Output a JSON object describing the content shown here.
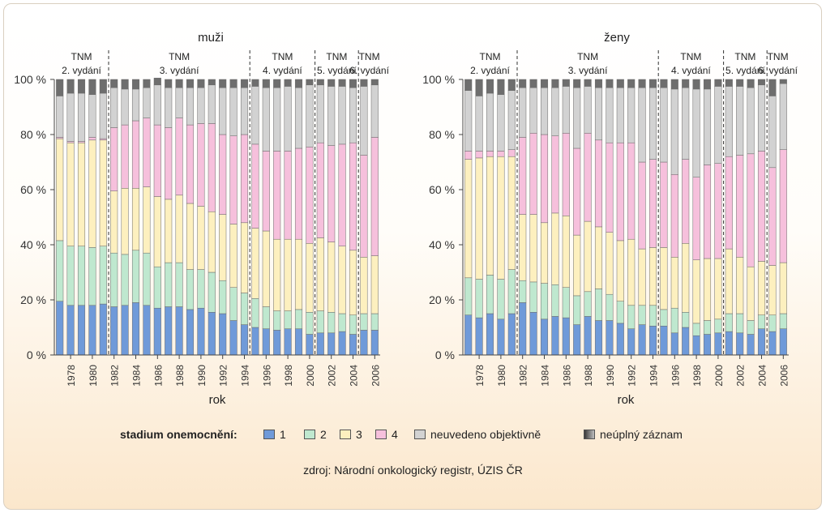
{
  "legend": {
    "title": "stadium onemocnění:",
    "items": [
      {
        "label": "1",
        "color": "#6f9ad9"
      },
      {
        "label": "2",
        "color": "#bfe8cf"
      },
      {
        "label": "3",
        "color": "#fdf0bf"
      },
      {
        "label": "4",
        "color": "#f6c0dc"
      },
      {
        "label": "neuvedeno objektivně",
        "color": "#d2d2d2"
      },
      {
        "label": "neúplný záznam",
        "color": "#6e6e6e"
      }
    ]
  },
  "source": "zdroj: Národní onkologický registr, ÚZIS ČR",
  "chart_data": [
    {
      "type": "bar",
      "stacked": true,
      "title": "muži",
      "xlabel": "rok",
      "ylabel": "",
      "ylim": [
        0,
        100
      ],
      "yticks": [
        "0 %",
        "20 %",
        "40 %",
        "60 %",
        "80 %",
        "100 %"
      ],
      "xtick_labels": [
        "1978",
        "1980",
        "1982",
        "1984",
        "1986",
        "1988",
        "1990",
        "1992",
        "1994",
        "1996",
        "1998",
        "2000",
        "2002",
        "2004",
        "2006"
      ],
      "categories": [
        1977,
        1978,
        1979,
        1980,
        1981,
        1982,
        1983,
        1984,
        1985,
        1986,
        1987,
        1988,
        1989,
        1990,
        1991,
        1992,
        1993,
        1994,
        1995,
        1996,
        1997,
        1998,
        1999,
        2000,
        2001,
        2002,
        2003,
        2004,
        2005,
        2006
      ],
      "editions": [
        {
          "label": "TNM",
          "sublabel": "2. vydání",
          "years": [
            1977,
            1981
          ]
        },
        {
          "label": "TNM",
          "sublabel": "3. vydání",
          "years": [
            1982,
            1994
          ]
        },
        {
          "label": "TNM",
          "sublabel": "4. vydání",
          "years": [
            1995,
            2000
          ]
        },
        {
          "label": "TNM",
          "sublabel": "5. vydání",
          "years": [
            2001,
            2004
          ]
        },
        {
          "label": "TNM",
          "sublabel": "6. vydání",
          "years": [
            2005,
            2006
          ]
        }
      ],
      "series": [
        {
          "name": "1",
          "values": [
            19.5,
            18,
            18,
            18,
            18.5,
            17.5,
            18,
            19,
            18,
            17,
            17.5,
            17.5,
            16.5,
            17,
            15.5,
            15,
            12.5,
            11,
            10,
            9.5,
            9,
            9.5,
            9.5,
            7.5,
            8,
            8,
            8.5,
            7.5,
            9,
            9
          ]
        },
        {
          "name": "2",
          "values": [
            22,
            21.5,
            21.5,
            21,
            21,
            19.5,
            18.5,
            19,
            19,
            15,
            16,
            16,
            14.5,
            14,
            14.5,
            12,
            12,
            11.5,
            10.5,
            8,
            7,
            6.5,
            7,
            8,
            8,
            7.5,
            6.5,
            7,
            6,
            6
          ]
        },
        {
          "name": "3",
          "values": [
            37,
            37.5,
            37.5,
            39,
            38.5,
            22.5,
            24,
            22.5,
            24,
            25.5,
            23,
            24.5,
            24,
            23,
            22,
            24,
            23,
            25.5,
            25.5,
            27.5,
            26,
            26,
            25.5,
            25,
            26.5,
            25.5,
            24.5,
            23.5,
            20.5,
            21
          ]
        },
        {
          "name": "4",
          "values": [
            0.5,
            0.5,
            0.5,
            1,
            0.5,
            23,
            23,
            24.5,
            25,
            26,
            26,
            28,
            28.5,
            30,
            32,
            29,
            32,
            32,
            30.5,
            29,
            32,
            32,
            33,
            35,
            34.5,
            35,
            37,
            39,
            37,
            43
          ]
        },
        {
          "name": "neuvedeno objektivně",
          "values": [
            15,
            17.5,
            17.5,
            15.5,
            16.5,
            14.5,
            13,
            11.5,
            11,
            14.5,
            14.5,
            11,
            13.5,
            13,
            14,
            17,
            17.5,
            17,
            21,
            23,
            23,
            23.5,
            22,
            22.5,
            21,
            21.5,
            21,
            20,
            25,
            19
          ]
        },
        {
          "name": "neúplný záznam",
          "values": [
            6,
            5,
            5,
            5.5,
            5,
            3,
            3.5,
            3.5,
            3,
            2.5,
            3,
            3,
            3,
            3,
            2,
            3,
            3,
            3,
            2.5,
            3,
            3,
            2.5,
            3,
            2,
            2,
            2.5,
            2.5,
            3,
            2.5,
            2
          ]
        }
      ]
    },
    {
      "type": "bar",
      "stacked": true,
      "title": "ženy",
      "xlabel": "rok",
      "ylabel": "",
      "ylim": [
        0,
        100
      ],
      "yticks": [
        "0 %",
        "20 %",
        "40 %",
        "60 %",
        "80 %",
        "100 %"
      ],
      "xtick_labels": [
        "1978",
        "1980",
        "1982",
        "1984",
        "1986",
        "1988",
        "1990",
        "1992",
        "1994",
        "1996",
        "1998",
        "2000",
        "2002",
        "2004",
        "2006"
      ],
      "categories": [
        1977,
        1978,
        1979,
        1980,
        1981,
        1982,
        1983,
        1984,
        1985,
        1986,
        1987,
        1988,
        1989,
        1990,
        1991,
        1992,
        1993,
        1994,
        1995,
        1996,
        1997,
        1998,
        1999,
        2000,
        2001,
        2002,
        2003,
        2004,
        2005,
        2006
      ],
      "editions": [
        {
          "label": "TNM",
          "sublabel": "2. vydání",
          "years": [
            1977,
            1981
          ]
        },
        {
          "label": "TNM",
          "sublabel": "3. vydání",
          "years": [
            1982,
            1994
          ]
        },
        {
          "label": "TNM",
          "sublabel": "4. vydání",
          "years": [
            1995,
            2000
          ]
        },
        {
          "label": "TNM",
          "sublabel": "5. vydání",
          "years": [
            2001,
            2004
          ]
        },
        {
          "label": "TNM",
          "sublabel": "6. vydání",
          "years": [
            2005,
            2006
          ]
        }
      ],
      "series": [
        {
          "name": "1",
          "values": [
            14.5,
            13.5,
            15,
            13,
            15,
            19,
            15.5,
            13,
            14,
            13.5,
            11,
            14,
            12.5,
            12.5,
            11.5,
            9.5,
            11,
            10.5,
            10.5,
            8,
            10,
            7,
            7.5,
            8,
            8.5,
            8,
            7.5,
            9.5,
            8.5,
            9.5
          ]
        },
        {
          "name": "2",
          "values": [
            13.5,
            14,
            14,
            14.5,
            16,
            8,
            11,
            13,
            11.5,
            11,
            10.5,
            9,
            11.5,
            9.5,
            8,
            8.5,
            7,
            7.5,
            6,
            9,
            5.5,
            4.5,
            5,
            5,
            6.5,
            7,
            5,
            5,
            6,
            5.5
          ]
        },
        {
          "name": "3",
          "values": [
            43,
            44,
            43,
            44.5,
            41,
            24,
            24.5,
            22,
            26,
            26,
            22,
            25.5,
            22.5,
            22.5,
            22,
            24,
            20.5,
            21,
            22.5,
            18.5,
            25,
            23,
            22.5,
            22,
            23.5,
            20.5,
            19.5,
            19.5,
            18,
            18.5
          ]
        },
        {
          "name": "4",
          "values": [
            3,
            2.5,
            2,
            2,
            2.5,
            28,
            29.5,
            32,
            28,
            30,
            31.5,
            32,
            31.5,
            32.5,
            35.5,
            35,
            31.5,
            32,
            31,
            30,
            30.5,
            30,
            34,
            34.5,
            33.5,
            37,
            41,
            40,
            35.5,
            41
          ]
        },
        {
          "name": "neuvedeno objektivně",
          "values": [
            22,
            20,
            21,
            20.5,
            21.5,
            18,
            16.5,
            17,
            17.5,
            17,
            22,
            17,
            19,
            20,
            20,
            20,
            27,
            26,
            27,
            31,
            26,
            32,
            27.5,
            28,
            25.5,
            25,
            24,
            24,
            26,
            24
          ]
        },
        {
          "name": "neúplný záznam",
          "values": [
            4,
            6,
            5,
            5.5,
            4,
            3,
            3,
            3,
            3,
            2.5,
            3,
            2.5,
            3,
            3,
            3,
            3,
            3,
            3,
            3,
            3.5,
            3,
            3.5,
            3.5,
            2.5,
            2.5,
            2.5,
            3,
            2,
            6,
            1.5
          ]
        }
      ]
    }
  ]
}
